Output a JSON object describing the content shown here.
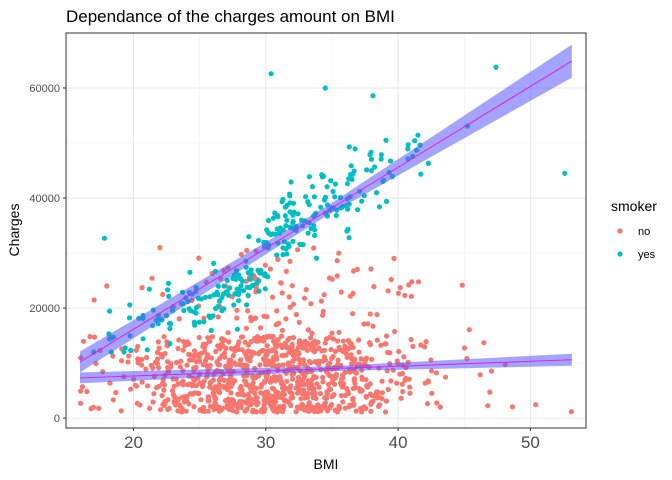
{
  "chart_data": {
    "type": "scatter",
    "title": "Dependance of the charges amount on BMI",
    "xlabel": "BMI",
    "ylabel": "Charges",
    "xlim": [
      14.9,
      54.2
    ],
    "ylim": [
      -1800,
      70000
    ],
    "x_ticks": [
      20,
      30,
      40,
      50
    ],
    "y_ticks": [
      0,
      20000,
      40000,
      60000
    ],
    "y_tick_labels": [
      "0",
      "20000",
      "40000",
      "60000"
    ],
    "grid": true,
    "legend": {
      "title": "smoker",
      "position": "right"
    },
    "series": [
      {
        "name": "no",
        "color": "#F8766D",
        "n_points": 1064,
        "bmi_range": [
          16,
          53
        ],
        "charges_range": [
          1100,
          36000
        ],
        "highlight_points": [
          [
            53.1,
            1160
          ],
          [
            50.4,
            2440
          ],
          [
            48.1,
            9750
          ],
          [
            16.8,
            1730
          ],
          [
            22.0,
            31000
          ],
          [
            40.8,
            24200
          ]
        ],
        "trend": {
          "method": "lm",
          "x": [
            15.96,
            53.13
          ],
          "y": [
            7300,
            10600
          ],
          "ci_halfwidth": [
            1000,
            1100
          ]
        }
      },
      {
        "name": "yes",
        "color": "#00BFC4",
        "n_points": 274,
        "bmi_range": [
          17,
          53
        ],
        "charges_range": [
          12000,
          64000
        ],
        "highlight_points": [
          [
            30.4,
            62600
          ],
          [
            34.5,
            60000
          ],
          [
            38.1,
            58600
          ],
          [
            47.4,
            63800
          ],
          [
            17.8,
            32700
          ],
          [
            52.6,
            44500
          ]
        ],
        "trend": {
          "method": "lm",
          "x": [
            15.96,
            53.13
          ],
          "y": [
            10200,
            64900
          ],
          "ci_halfwidth": [
            1900,
            3000
          ]
        }
      }
    ]
  }
}
